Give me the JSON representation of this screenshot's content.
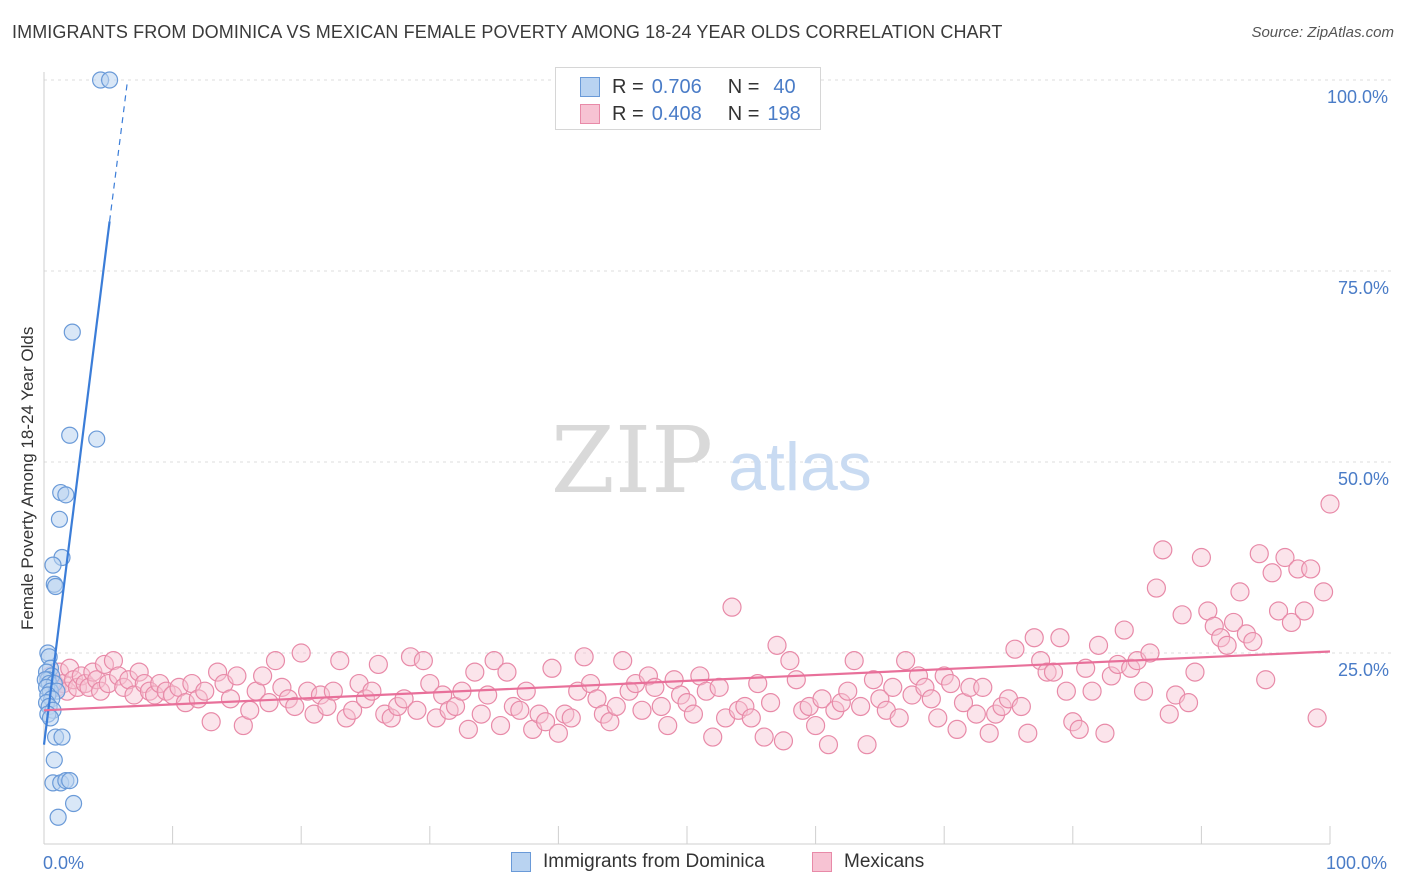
{
  "header": {
    "title": "IMMIGRANTS FROM DOMINICA VS MEXICAN FEMALE POVERTY AMONG 18-24 YEAR OLDS CORRELATION CHART",
    "source": "Source: ZipAtlas.com"
  },
  "watermark": {
    "zip": "ZIP",
    "atlas": "atlas"
  },
  "colors": {
    "blue_fill": "#b9d3f1",
    "blue_stroke": "#6a9ad8",
    "blue_line": "#3b7dd8",
    "pink_fill": "#f7c3d3",
    "pink_stroke": "#e88aa8",
    "pink_line": "#e8709a",
    "grid": "#dddddd",
    "tick_text": "#4a7cc7"
  },
  "legend_top": {
    "rows": [
      {
        "r_label": "R =",
        "r_value": "0.706",
        "n_label": "N =",
        "n_value": "40"
      },
      {
        "r_label": "R =",
        "r_value": "0.408",
        "n_label": "N =",
        "n_value": "198"
      }
    ]
  },
  "axes": {
    "y_label": "Female Poverty Among 18-24 Year Olds",
    "x_min_label": "0.0%",
    "x_max_label": "100.0%",
    "y_tick_labels": [
      "100.0%",
      "75.0%",
      "50.0%",
      "25.0%"
    ]
  },
  "bottom_legend": {
    "series1": "Immigrants from Dominica",
    "series2": "Mexicans"
  },
  "chart_data": {
    "type": "scatter",
    "title": "IMMIGRANTS FROM DOMINICA VS MEXICAN FEMALE POVERTY AMONG 18-24 YEAR OLDS CORRELATION CHART",
    "xlabel": "",
    "ylabel": "Female Poverty Among 18-24 Year Olds",
    "xlim": [
      0,
      100
    ],
    "ylim": [
      0,
      102
    ],
    "y_ticks": [
      25,
      50,
      75,
      100
    ],
    "grid": true,
    "legend_position": "top-center",
    "series": [
      {
        "name": "Immigrants from Dominica",
        "r": 0.706,
        "n": 40,
        "trend": {
          "x0": 0.0,
          "y0": 13,
          "x1": 5.1,
          "y1": 81.5,
          "dash_to_x": 6.5,
          "dash_to_y": 100
        },
        "points": [
          [
            4.4,
            100
          ],
          [
            5.1,
            100
          ],
          [
            2.2,
            67
          ],
          [
            2.0,
            53.5
          ],
          [
            4.1,
            53
          ],
          [
            1.3,
            46
          ],
          [
            1.7,
            45.7
          ],
          [
            1.2,
            42.5
          ],
          [
            1.4,
            37.5
          ],
          [
            0.7,
            36.5
          ],
          [
            0.8,
            34
          ],
          [
            0.9,
            33.7
          ],
          [
            0.3,
            25
          ],
          [
            0.4,
            24.5
          ],
          [
            0.5,
            23
          ],
          [
            0.2,
            22.5
          ],
          [
            0.6,
            22
          ],
          [
            0.3,
            21.5
          ],
          [
            0.1,
            21.5
          ],
          [
            0.4,
            21
          ],
          [
            0.8,
            21
          ],
          [
            0.2,
            20.5
          ],
          [
            0.5,
            20
          ],
          [
            1.0,
            20
          ],
          [
            0.3,
            19.5
          ],
          [
            0.6,
            19
          ],
          [
            0.2,
            18.5
          ],
          [
            0.4,
            18
          ],
          [
            0.7,
            17.5
          ],
          [
            0.3,
            17
          ],
          [
            0.5,
            16.5
          ],
          [
            0.9,
            14
          ],
          [
            1.4,
            14
          ],
          [
            0.8,
            11
          ],
          [
            0.7,
            8
          ],
          [
            1.3,
            8
          ],
          [
            1.7,
            8.3
          ],
          [
            2.0,
            8.3
          ],
          [
            2.3,
            5.3
          ],
          [
            1.1,
            3.5
          ]
        ]
      },
      {
        "name": "Mexicans",
        "r": 0.408,
        "n": 198,
        "trend": {
          "x0": 0.0,
          "y0": 17.5,
          "x1": 100,
          "y1": 25.2
        },
        "points": [
          [
            0.5,
            22
          ],
          [
            0.8,
            21
          ],
          [
            1.0,
            20.5
          ],
          [
            1.2,
            22.5
          ],
          [
            1.5,
            21
          ],
          [
            1.8,
            20
          ],
          [
            2.0,
            23
          ],
          [
            2.3,
            21.5
          ],
          [
            2.6,
            20.5
          ],
          [
            2.9,
            22
          ],
          [
            3.2,
            21
          ],
          [
            3.5,
            20.5
          ],
          [
            3.8,
            22.5
          ],
          [
            4.1,
            21.5
          ],
          [
            4.4,
            20
          ],
          [
            4.7,
            23.5
          ],
          [
            5.0,
            21
          ],
          [
            5.4,
            24
          ],
          [
            5.8,
            22
          ],
          [
            6.2,
            20.5
          ],
          [
            6.6,
            21.5
          ],
          [
            7.0,
            19.5
          ],
          [
            7.4,
            22.5
          ],
          [
            7.8,
            21
          ],
          [
            8.2,
            20
          ],
          [
            8.6,
            19.5
          ],
          [
            9.0,
            21
          ],
          [
            9.5,
            20
          ],
          [
            10.0,
            19.5
          ],
          [
            10.5,
            20.5
          ],
          [
            11.0,
            18.5
          ],
          [
            11.5,
            21
          ],
          [
            12.0,
            19
          ],
          [
            12.5,
            20
          ],
          [
            13.0,
            16
          ],
          [
            13.5,
            22.5
          ],
          [
            14.0,
            21
          ],
          [
            14.5,
            19
          ],
          [
            15.0,
            22
          ],
          [
            15.5,
            15.5
          ],
          [
            16.0,
            17.5
          ],
          [
            16.5,
            20
          ],
          [
            17.0,
            22
          ],
          [
            17.5,
            18.5
          ],
          [
            18.0,
            24
          ],
          [
            18.5,
            20.5
          ],
          [
            19.0,
            19
          ],
          [
            19.5,
            18
          ],
          [
            20.0,
            25
          ],
          [
            20.5,
            20
          ],
          [
            21.0,
            17
          ],
          [
            21.5,
            19.5
          ],
          [
            22.0,
            18
          ],
          [
            22.5,
            20
          ],
          [
            23.0,
            24
          ],
          [
            23.5,
            16.5
          ],
          [
            24.0,
            17.5
          ],
          [
            24.5,
            21
          ],
          [
            25.0,
            19
          ],
          [
            25.5,
            20
          ],
          [
            26.0,
            23.5
          ],
          [
            26.5,
            17
          ],
          [
            27.0,
            16.5
          ],
          [
            27.5,
            18
          ],
          [
            28.0,
            19
          ],
          [
            28.5,
            24.5
          ],
          [
            29.0,
            17.5
          ],
          [
            29.5,
            24
          ],
          [
            30.0,
            21
          ],
          [
            30.5,
            16.5
          ],
          [
            31.0,
            19.5
          ],
          [
            31.5,
            17.5
          ],
          [
            32.0,
            18
          ],
          [
            32.5,
            20
          ],
          [
            33.0,
            15
          ],
          [
            33.5,
            22.5
          ],
          [
            34.0,
            17
          ],
          [
            34.5,
            19.5
          ],
          [
            35.0,
            24
          ],
          [
            35.5,
            15.5
          ],
          [
            36.0,
            22.5
          ],
          [
            36.5,
            18
          ],
          [
            37.0,
            17.5
          ],
          [
            37.5,
            20
          ],
          [
            38.0,
            15
          ],
          [
            38.5,
            17
          ],
          [
            39.0,
            16
          ],
          [
            39.5,
            23
          ],
          [
            40.0,
            14.5
          ],
          [
            40.5,
            17
          ],
          [
            41.0,
            16.5
          ],
          [
            41.5,
            20
          ],
          [
            42.0,
            24.5
          ],
          [
            42.5,
            21
          ],
          [
            43.0,
            19
          ],
          [
            43.5,
            17
          ],
          [
            44.0,
            16
          ],
          [
            44.5,
            18
          ],
          [
            45.0,
            24
          ],
          [
            45.5,
            20
          ],
          [
            46.0,
            21
          ],
          [
            46.5,
            17.5
          ],
          [
            47.0,
            22
          ],
          [
            47.5,
            20.5
          ],
          [
            48.0,
            18
          ],
          [
            48.5,
            15.5
          ],
          [
            49.0,
            21.5
          ],
          [
            49.5,
            19.5
          ],
          [
            50.0,
            18.5
          ],
          [
            50.5,
            17
          ],
          [
            51.0,
            22
          ],
          [
            51.5,
            20
          ],
          [
            52.0,
            14
          ],
          [
            52.5,
            20.5
          ],
          [
            53.0,
            16.5
          ],
          [
            53.5,
            31
          ],
          [
            54.0,
            17.5
          ],
          [
            54.5,
            18
          ],
          [
            55.0,
            16.5
          ],
          [
            55.5,
            21
          ],
          [
            56.0,
            14
          ],
          [
            56.5,
            18.5
          ],
          [
            57.0,
            26
          ],
          [
            57.5,
            13.5
          ],
          [
            58.0,
            24
          ],
          [
            58.5,
            21.5
          ],
          [
            59.0,
            17.5
          ],
          [
            59.5,
            18
          ],
          [
            60.0,
            15.5
          ],
          [
            60.5,
            19
          ],
          [
            61.0,
            13
          ],
          [
            61.5,
            17.5
          ],
          [
            62.0,
            18.5
          ],
          [
            62.5,
            20
          ],
          [
            63.0,
            24
          ],
          [
            63.5,
            18
          ],
          [
            64.0,
            13
          ],
          [
            64.5,
            21.5
          ],
          [
            65.0,
            19
          ],
          [
            65.5,
            17.5
          ],
          [
            66.0,
            20.5
          ],
          [
            66.5,
            16.5
          ],
          [
            67.0,
            24
          ],
          [
            67.5,
            19.5
          ],
          [
            68.0,
            22
          ],
          [
            68.5,
            20.5
          ],
          [
            69.0,
            19
          ],
          [
            69.5,
            16.5
          ],
          [
            70.0,
            22
          ],
          [
            70.5,
            21
          ],
          [
            71.0,
            15
          ],
          [
            71.5,
            18.5
          ],
          [
            72.0,
            20.5
          ],
          [
            72.5,
            17
          ],
          [
            73.0,
            20.5
          ],
          [
            73.5,
            14.5
          ],
          [
            74.0,
            17
          ],
          [
            74.5,
            18
          ],
          [
            75.0,
            19
          ],
          [
            75.5,
            25.5
          ],
          [
            76.0,
            18
          ],
          [
            76.5,
            14.5
          ],
          [
            77.0,
            27
          ],
          [
            77.5,
            24
          ],
          [
            78.0,
            22.5
          ],
          [
            78.5,
            22.5
          ],
          [
            79.0,
            27
          ],
          [
            79.5,
            20
          ],
          [
            80.0,
            16
          ],
          [
            80.5,
            15
          ],
          [
            81.0,
            23
          ],
          [
            81.5,
            20
          ],
          [
            82.0,
            26
          ],
          [
            82.5,
            14.5
          ],
          [
            83.0,
            22
          ],
          [
            83.5,
            23.5
          ],
          [
            84.0,
            28
          ],
          [
            84.5,
            23
          ],
          [
            85.0,
            24
          ],
          [
            85.5,
            20
          ],
          [
            86.0,
            25
          ],
          [
            86.5,
            33.5
          ],
          [
            87.0,
            38.5
          ],
          [
            87.5,
            17
          ],
          [
            88.0,
            19.5
          ],
          [
            88.5,
            30
          ],
          [
            89.0,
            18.5
          ],
          [
            89.5,
            22.5
          ],
          [
            90.0,
            37.5
          ],
          [
            90.5,
            30.5
          ],
          [
            91.0,
            28.5
          ],
          [
            91.5,
            27
          ],
          [
            92.0,
            26
          ],
          [
            92.5,
            29
          ],
          [
            93.0,
            33
          ],
          [
            93.5,
            27.5
          ],
          [
            94.0,
            26.5
          ],
          [
            94.5,
            38
          ],
          [
            95.0,
            21.5
          ],
          [
            95.5,
            35.5
          ],
          [
            96.0,
            30.5
          ],
          [
            96.5,
            37.5
          ],
          [
            97.0,
            29
          ],
          [
            97.5,
            36
          ],
          [
            98.0,
            30.5
          ],
          [
            98.5,
            36
          ],
          [
            99.0,
            16.5
          ],
          [
            99.5,
            33
          ],
          [
            100.0,
            44.5
          ]
        ]
      }
    ]
  }
}
